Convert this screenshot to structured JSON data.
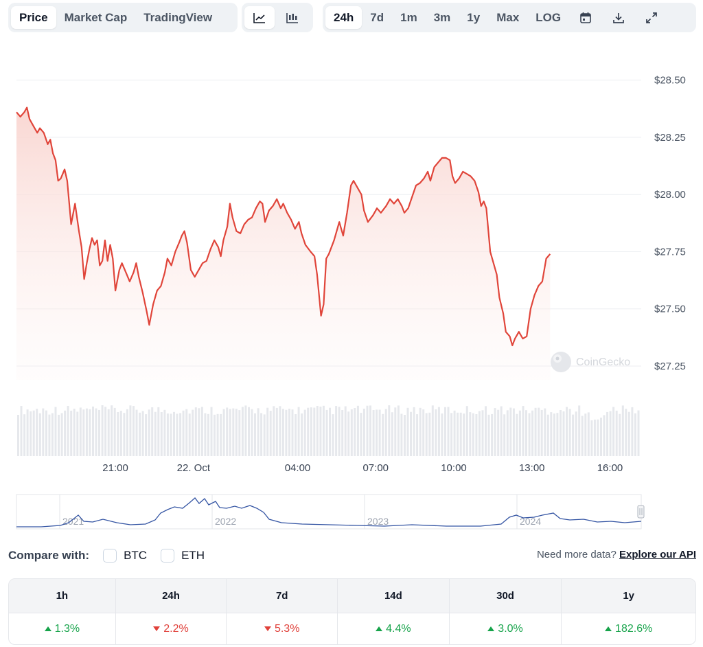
{
  "toolbar": {
    "tabs": [
      "Price",
      "Market Cap",
      "TradingView"
    ],
    "active_tab": "Price",
    "chart_types": [
      "line-chart-icon",
      "candlestick-icon"
    ],
    "ranges": [
      "24h",
      "7d",
      "1m",
      "3m",
      "1y",
      "Max",
      "LOG"
    ],
    "active_range": "24h",
    "actions": [
      "calendar-icon",
      "download-icon",
      "expand-icon"
    ]
  },
  "colors": {
    "price_line": "#e0453a",
    "area_top": "#f9d5d0",
    "volume_bar": "#e6e8ec",
    "navigator_line": "#3354a3",
    "up": "#16a34a",
    "down": "#e0403a"
  },
  "chart_data": {
    "type": "area",
    "title": "",
    "xlabel": "",
    "ylabel": "",
    "ylim": [
      27.19,
      28.55
    ],
    "y_ticks": [
      "$28.50",
      "$28.25",
      "$28.00",
      "$27.75",
      "$27.50",
      "$27.25"
    ],
    "y_tick_values": [
      28.5,
      28.25,
      28.0,
      27.75,
      27.5,
      27.25
    ],
    "x_ticks": [
      "21:00",
      "22. Oct",
      "04:00",
      "07:00",
      "10:00",
      "13:00",
      "16:00"
    ],
    "x_tick_hours": [
      3.8,
      6.8,
      10.8,
      13.8,
      16.8,
      19.8,
      22.8
    ],
    "x_range_hours": [
      0,
      24
    ],
    "watermark": "CoinGecko",
    "series": [
      {
        "name": "Price",
        "points": [
          [
            0.0,
            28.36
          ],
          [
            0.15,
            28.34
          ],
          [
            0.3,
            28.36
          ],
          [
            0.4,
            28.38
          ],
          [
            0.5,
            28.33
          ],
          [
            0.65,
            28.3
          ],
          [
            0.8,
            28.27
          ],
          [
            0.9,
            28.29
          ],
          [
            1.05,
            28.27
          ],
          [
            1.2,
            28.22
          ],
          [
            1.3,
            28.24
          ],
          [
            1.4,
            28.18
          ],
          [
            1.5,
            28.15
          ],
          [
            1.6,
            28.06
          ],
          [
            1.7,
            28.07
          ],
          [
            1.85,
            28.11
          ],
          [
            1.95,
            28.06
          ],
          [
            2.1,
            27.87
          ],
          [
            2.25,
            27.96
          ],
          [
            2.4,
            27.84
          ],
          [
            2.5,
            27.77
          ],
          [
            2.6,
            27.63
          ],
          [
            2.7,
            27.7
          ],
          [
            2.8,
            27.76
          ],
          [
            2.9,
            27.81
          ],
          [
            3.0,
            27.78
          ],
          [
            3.1,
            27.8
          ],
          [
            3.2,
            27.69
          ],
          [
            3.3,
            27.71
          ],
          [
            3.4,
            27.8
          ],
          [
            3.5,
            27.71
          ],
          [
            3.6,
            27.78
          ],
          [
            3.7,
            27.72
          ],
          [
            3.8,
            27.58
          ],
          [
            3.95,
            27.67
          ],
          [
            4.05,
            27.7
          ],
          [
            4.2,
            27.66
          ],
          [
            4.35,
            27.62
          ],
          [
            4.5,
            27.66
          ],
          [
            4.6,
            27.7
          ],
          [
            4.7,
            27.64
          ],
          [
            4.85,
            27.57
          ],
          [
            5.0,
            27.49
          ],
          [
            5.1,
            27.43
          ],
          [
            5.25,
            27.52
          ],
          [
            5.4,
            27.58
          ],
          [
            5.55,
            27.6
          ],
          [
            5.7,
            27.66
          ],
          [
            5.8,
            27.72
          ],
          [
            5.95,
            27.69
          ],
          [
            6.1,
            27.75
          ],
          [
            6.25,
            27.79
          ],
          [
            6.35,
            27.82
          ],
          [
            6.45,
            27.84
          ],
          [
            6.55,
            27.79
          ],
          [
            6.7,
            27.67
          ],
          [
            6.85,
            27.64
          ],
          [
            7.0,
            27.67
          ],
          [
            7.15,
            27.7
          ],
          [
            7.3,
            27.71
          ],
          [
            7.45,
            27.76
          ],
          [
            7.6,
            27.8
          ],
          [
            7.75,
            27.77
          ],
          [
            7.85,
            27.73
          ],
          [
            7.95,
            27.8
          ],
          [
            8.1,
            27.86
          ],
          [
            8.2,
            27.96
          ],
          [
            8.3,
            27.9
          ],
          [
            8.45,
            27.84
          ],
          [
            8.6,
            27.83
          ],
          [
            8.75,
            27.87
          ],
          [
            8.9,
            27.89
          ],
          [
            9.05,
            27.9
          ],
          [
            9.2,
            27.94
          ],
          [
            9.35,
            27.97
          ],
          [
            9.45,
            27.96
          ],
          [
            9.55,
            27.88
          ],
          [
            9.7,
            27.93
          ],
          [
            9.85,
            27.95
          ],
          [
            10.0,
            27.98
          ],
          [
            10.15,
            27.94
          ],
          [
            10.25,
            27.96
          ],
          [
            10.4,
            27.92
          ],
          [
            10.55,
            27.89
          ],
          [
            10.7,
            27.85
          ],
          [
            10.85,
            27.88
          ],
          [
            10.95,
            27.83
          ],
          [
            11.1,
            27.78
          ],
          [
            11.3,
            27.75
          ],
          [
            11.45,
            27.73
          ],
          [
            11.55,
            27.65
          ],
          [
            11.7,
            27.47
          ],
          [
            11.8,
            27.52
          ],
          [
            11.9,
            27.72
          ],
          [
            12.0,
            27.74
          ],
          [
            12.2,
            27.8
          ],
          [
            12.4,
            27.88
          ],
          [
            12.55,
            27.82
          ],
          [
            12.7,
            27.92
          ],
          [
            12.85,
            28.04
          ],
          [
            12.95,
            28.06
          ],
          [
            13.1,
            28.03
          ],
          [
            13.25,
            28.0
          ],
          [
            13.35,
            27.93
          ],
          [
            13.5,
            27.88
          ],
          [
            13.7,
            27.91
          ],
          [
            13.85,
            27.94
          ],
          [
            14.0,
            27.92
          ],
          [
            14.2,
            27.95
          ],
          [
            14.35,
            27.98
          ],
          [
            14.5,
            27.96
          ],
          [
            14.65,
            27.98
          ],
          [
            14.8,
            27.95
          ],
          [
            14.9,
            27.92
          ],
          [
            15.05,
            27.94
          ],
          [
            15.2,
            27.99
          ],
          [
            15.35,
            28.04
          ],
          [
            15.5,
            28.05
          ],
          [
            15.65,
            28.07
          ],
          [
            15.8,
            28.1
          ],
          [
            15.9,
            28.06
          ],
          [
            16.05,
            28.12
          ],
          [
            16.2,
            28.14
          ],
          [
            16.35,
            28.16
          ],
          [
            16.5,
            28.16
          ],
          [
            16.65,
            28.15
          ],
          [
            16.75,
            28.08
          ],
          [
            16.85,
            28.05
          ],
          [
            17.0,
            28.07
          ],
          [
            17.15,
            28.1
          ],
          [
            17.3,
            28.09
          ],
          [
            17.45,
            28.08
          ],
          [
            17.6,
            28.06
          ],
          [
            17.75,
            28.01
          ],
          [
            17.85,
            27.95
          ],
          [
            17.95,
            27.97
          ],
          [
            18.05,
            27.94
          ],
          [
            18.2,
            27.75
          ],
          [
            18.3,
            27.71
          ],
          [
            18.45,
            27.65
          ],
          [
            18.55,
            27.55
          ],
          [
            18.7,
            27.48
          ],
          [
            18.8,
            27.4
          ],
          [
            18.95,
            27.38
          ],
          [
            19.05,
            27.34
          ],
          [
            19.15,
            27.37
          ],
          [
            19.3,
            27.4
          ],
          [
            19.45,
            27.37
          ],
          [
            19.6,
            27.38
          ],
          [
            19.75,
            27.5
          ],
          [
            19.9,
            27.56
          ],
          [
            20.05,
            27.6
          ],
          [
            20.2,
            27.62
          ],
          [
            20.35,
            27.72
          ],
          [
            20.5,
            27.74
          ]
        ]
      }
    ],
    "navigator": {
      "labels": [
        "2021",
        "2022",
        "2023",
        "2024"
      ]
    }
  },
  "compare": {
    "label": "Compare with:",
    "options": [
      "BTC",
      "ETH"
    ]
  },
  "api_prompt": {
    "text": "Need more data? ",
    "link": "Explore our API"
  },
  "performance": [
    {
      "period": "1h",
      "value": "1.3%",
      "direction": "up"
    },
    {
      "period": "24h",
      "value": "2.2%",
      "direction": "down"
    },
    {
      "period": "7d",
      "value": "5.3%",
      "direction": "down"
    },
    {
      "period": "14d",
      "value": "4.4%",
      "direction": "up"
    },
    {
      "period": "30d",
      "value": "3.0%",
      "direction": "up"
    },
    {
      "period": "1y",
      "value": "182.6%",
      "direction": "up"
    }
  ]
}
